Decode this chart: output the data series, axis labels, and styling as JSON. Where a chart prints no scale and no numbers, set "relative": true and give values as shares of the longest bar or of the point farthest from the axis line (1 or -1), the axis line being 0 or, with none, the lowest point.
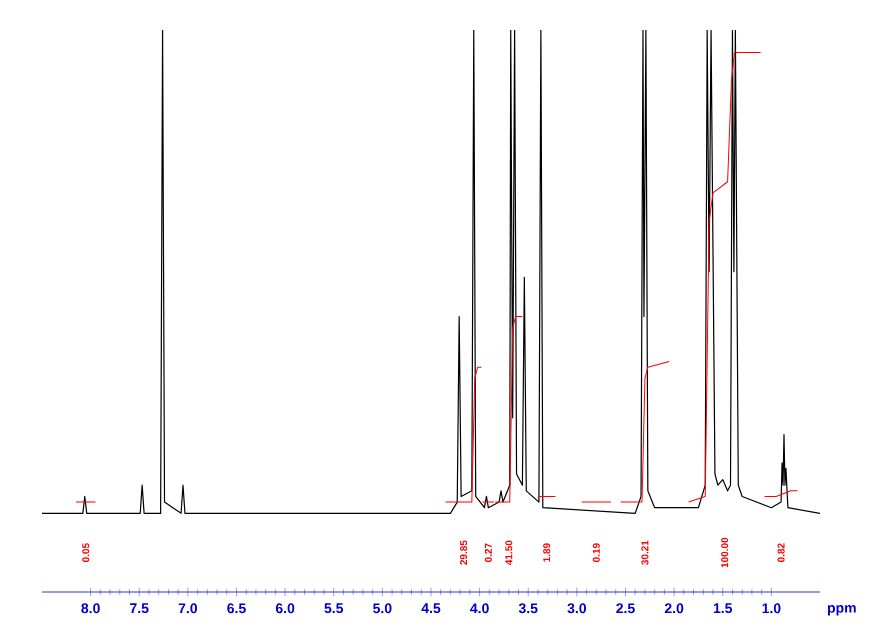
{
  "chart_data": {
    "type": "line",
    "relative": true,
    "xlabel": "ppm",
    "xlim": [
      8.5,
      0.5
    ],
    "xticks": [
      {
        "value": 8,
        "label": "8.0"
      },
      {
        "value": 7.5,
        "label": "7.5"
      },
      {
        "value": 7,
        "label": "7.0"
      },
      {
        "value": 6.5,
        "label": "6.5"
      },
      {
        "value": 6,
        "label": "6.0"
      },
      {
        "value": 5.5,
        "label": "5.5"
      },
      {
        "value": 5,
        "label": "5.0"
      },
      {
        "value": 4.5,
        "label": "4.5"
      },
      {
        "value": 4,
        "label": "4.0"
      },
      {
        "value": 3.5,
        "label": "3.5"
      },
      {
        "value": 3,
        "label": "3.0"
      },
      {
        "value": 2.5,
        "label": "2.5"
      },
      {
        "value": 2,
        "label": "2.0"
      },
      {
        "value": 1.5,
        "label": "1.5"
      },
      {
        "value": 1,
        "label": "1.0"
      }
    ],
    "series": [
      {
        "color": "#000000",
        "x": [
          8.5,
          8.08,
          8.06,
          8.04,
          7.49,
          7.47,
          7.45,
          7.28,
          7.26,
          7.24,
          7.07,
          7.05,
          7.03,
          4.3,
          4.23,
          4.21,
          4.19,
          4.08,
          4.06,
          4.04,
          3.95,
          3.93,
          3.91,
          3.8,
          3.78,
          3.76,
          3.69,
          3.68,
          3.66,
          3.64,
          3.62,
          3.56,
          3.54,
          3.52,
          3.39,
          3.37,
          3.35,
          2.4,
          2.34,
          2.32,
          2.31,
          2.29,
          2.27,
          2.2,
          1.75,
          1.68,
          1.66,
          1.64,
          1.62,
          1.58,
          1.55,
          1.5,
          1.45,
          1.42,
          1.4,
          1.385,
          1.37,
          1.34,
          1.3,
          1.0,
          0.9,
          0.89,
          0.88,
          0.87,
          0.86,
          0.85,
          0.83,
          0.5
        ],
        "values": [
          0.14,
          0.14,
          0.17,
          0.14,
          0.14,
          0.19,
          0.14,
          0.14,
          1,
          0.16,
          0.14,
          0.19,
          0.14,
          0.14,
          0.16,
          0.49,
          0.17,
          0.18,
          1,
          0.17,
          0.15,
          0.17,
          0.15,
          0.16,
          0.18,
          0.16,
          0.19,
          1,
          0.31,
          1,
          0.21,
          0.19,
          0.56,
          0.18,
          0.16,
          1,
          0.15,
          0.14,
          0.17,
          1,
          0.49,
          1,
          0.18,
          0.15,
          0.15,
          0.19,
          1,
          0.57,
          1,
          0.21,
          0.19,
          0.2,
          0.18,
          0.19,
          1,
          0.57,
          1,
          0.19,
          0.17,
          0.15,
          0.16,
          0.23,
          0.19,
          0.28,
          0.19,
          0.22,
          0.15,
          0.14
        ]
      },
      {
        "color": "#ff0000",
        "x": [
          8.15,
          7.95,
          7.9,
          4.35,
          4.08,
          4.05,
          4.02,
          3.98,
          3.975,
          3.97,
          3.85,
          3.845,
          3.84,
          3.69,
          3.66,
          3.63,
          3.56,
          3.5,
          3.4,
          3.22,
          3.1,
          2.95,
          2.65,
          2.6,
          2.55,
          2.33,
          2.3,
          2.27,
          2.05,
          2.0,
          1.85,
          1.68,
          1.64,
          1.6,
          1.45,
          1.41,
          1.38,
          1.11,
          1.08,
          1.07,
          0.95,
          0.8,
          0.73
        ],
        "values": [
          0.16,
          0.16,
          null,
          0.16,
          0.16,
          0.38,
          0.4,
          0.4,
          null,
          0.16,
          0.16,
          null,
          0.16,
          0.16,
          0.47,
          0.49,
          0.49,
          null,
          0.17,
          0.17,
          null,
          0.16,
          0.16,
          null,
          0.16,
          0.16,
          0.38,
          0.4,
          0.41,
          null,
          0.16,
          0.17,
          0.66,
          0.71,
          0.73,
          0.91,
          0.96,
          0.96,
          null,
          0.17,
          0.17,
          0.18,
          0.18
        ]
      }
    ],
    "annotations": [
      "0.05",
      "29.85",
      "0.27",
      "41.50",
      "1.89",
      "0.19",
      "30.21",
      "100.00",
      "0.82"
    ]
  }
}
